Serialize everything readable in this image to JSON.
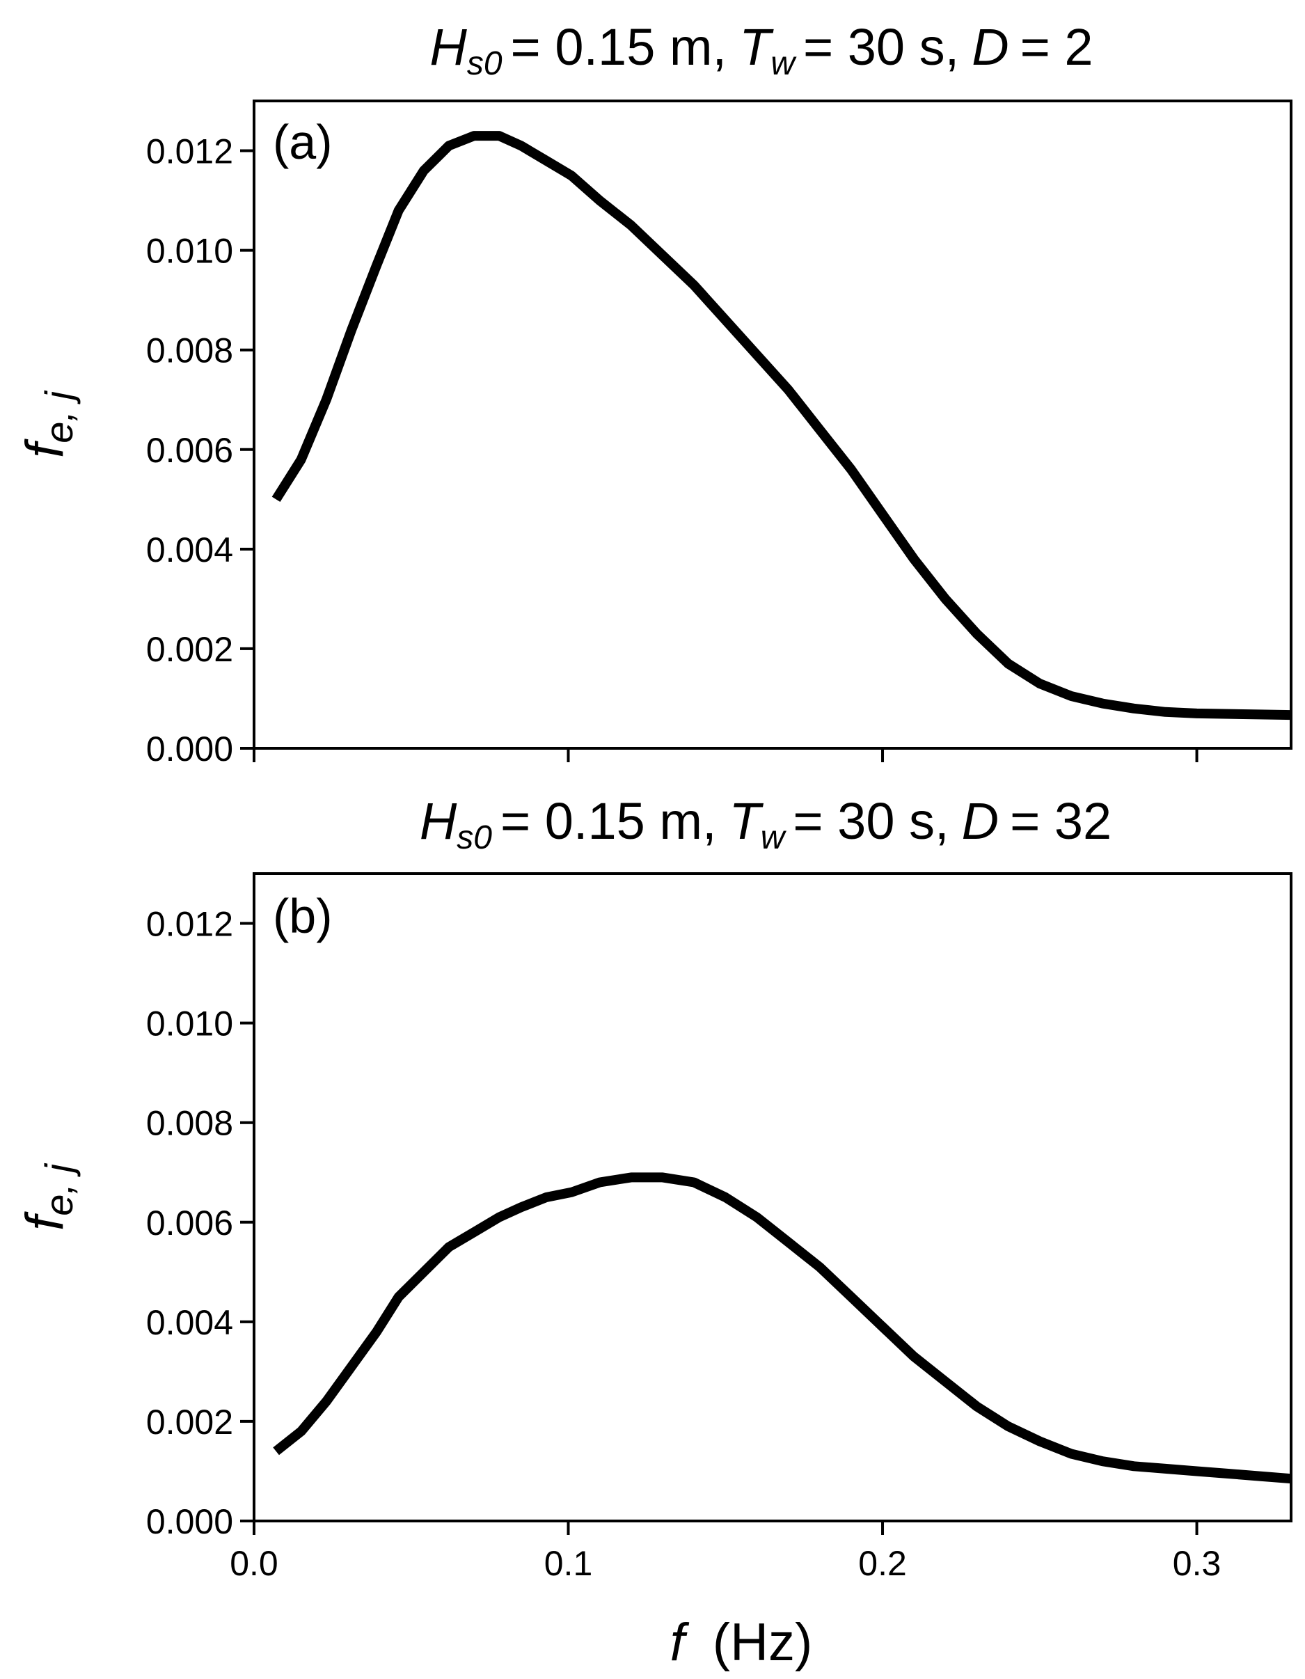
{
  "chart_data": [
    {
      "type": "line",
      "panel_label": "(a)",
      "title": {
        "H_symbol": "H",
        "H_sub": "s0",
        "H_value": "= 0.15 m,",
        "T_symbol": "T",
        "T_sub": "w",
        "T_value": "= 30 s,",
        "D_symbol": "D",
        "D_value": "= 2"
      },
      "ylabel": {
        "main": "f",
        "sub": "e, j"
      },
      "xlabel": "",
      "xlim": [
        0.0,
        0.33
      ],
      "ylim": [
        0.0,
        0.013
      ],
      "yticks": [
        0.0,
        0.002,
        0.004,
        0.006,
        0.008,
        0.01,
        0.012
      ],
      "ytick_labels": [
        "0.000",
        "0.002",
        "0.004",
        "0.006",
        "0.008",
        "0.010",
        "0.012"
      ],
      "xticks": [
        0.0,
        0.1,
        0.2,
        0.3
      ],
      "xtick_labels": [
        "",
        "",
        "",
        ""
      ],
      "grid": false,
      "series": [
        {
          "x": [
            0.007,
            0.015,
            0.023,
            0.031,
            0.039,
            0.046,
            0.054,
            0.062,
            0.07,
            0.078,
            0.085,
            0.093,
            0.101,
            0.11,
            0.12,
            0.13,
            0.14,
            0.15,
            0.16,
            0.17,
            0.18,
            0.19,
            0.2,
            0.21,
            0.22,
            0.23,
            0.24,
            0.25,
            0.26,
            0.27,
            0.28,
            0.29,
            0.3,
            0.31,
            0.32,
            0.33
          ],
          "y": [
            0.005,
            0.0058,
            0.007,
            0.0084,
            0.0097,
            0.0108,
            0.0116,
            0.0121,
            0.0123,
            0.0123,
            0.0121,
            0.0118,
            0.0115,
            0.011,
            0.0105,
            0.0099,
            0.0093,
            0.0086,
            0.0079,
            0.0072,
            0.0064,
            0.0056,
            0.0047,
            0.0038,
            0.003,
            0.0023,
            0.0017,
            0.0013,
            0.00105,
            0.0009,
            0.0008,
            0.00073,
            0.0007,
            0.00069,
            0.00068,
            0.00067
          ]
        }
      ]
    },
    {
      "type": "line",
      "panel_label": "(b)",
      "title": {
        "H_symbol": "H",
        "H_sub": "s0",
        "H_value": "= 0.15 m,",
        "T_symbol": "T",
        "T_sub": "w",
        "T_value": "= 30 s,",
        "D_symbol": "D",
        "D_value": "= 32"
      },
      "ylabel": {
        "main": "f",
        "sub": "e, j"
      },
      "xlabel": {
        "main": "f",
        "unit": "(Hz)"
      },
      "xlim": [
        0.0,
        0.33
      ],
      "ylim": [
        0.0,
        0.013
      ],
      "yticks": [
        0.0,
        0.002,
        0.004,
        0.006,
        0.008,
        0.01,
        0.012
      ],
      "ytick_labels": [
        "0.000",
        "0.002",
        "0.004",
        "0.006",
        "0.008",
        "0.010",
        "0.012"
      ],
      "xticks": [
        0.0,
        0.1,
        0.2,
        0.3
      ],
      "xtick_labels": [
        "0.0",
        "0.1",
        "0.2",
        "0.3"
      ],
      "grid": false,
      "series": [
        {
          "x": [
            0.007,
            0.015,
            0.023,
            0.031,
            0.039,
            0.046,
            0.054,
            0.062,
            0.07,
            0.078,
            0.085,
            0.093,
            0.101,
            0.11,
            0.12,
            0.13,
            0.14,
            0.15,
            0.16,
            0.17,
            0.18,
            0.19,
            0.2,
            0.21,
            0.22,
            0.23,
            0.24,
            0.25,
            0.26,
            0.27,
            0.28,
            0.29,
            0.3,
            0.31,
            0.32,
            0.33
          ],
          "y": [
            0.0014,
            0.0018,
            0.0024,
            0.0031,
            0.0038,
            0.0045,
            0.005,
            0.0055,
            0.0058,
            0.0061,
            0.0063,
            0.0065,
            0.0066,
            0.0068,
            0.0069,
            0.0069,
            0.0068,
            0.0065,
            0.0061,
            0.0056,
            0.0051,
            0.0045,
            0.0039,
            0.0033,
            0.0028,
            0.0023,
            0.0019,
            0.0016,
            0.00135,
            0.0012,
            0.0011,
            0.00105,
            0.001,
            0.00095,
            0.0009,
            0.00085
          ]
        }
      ]
    }
  ]
}
